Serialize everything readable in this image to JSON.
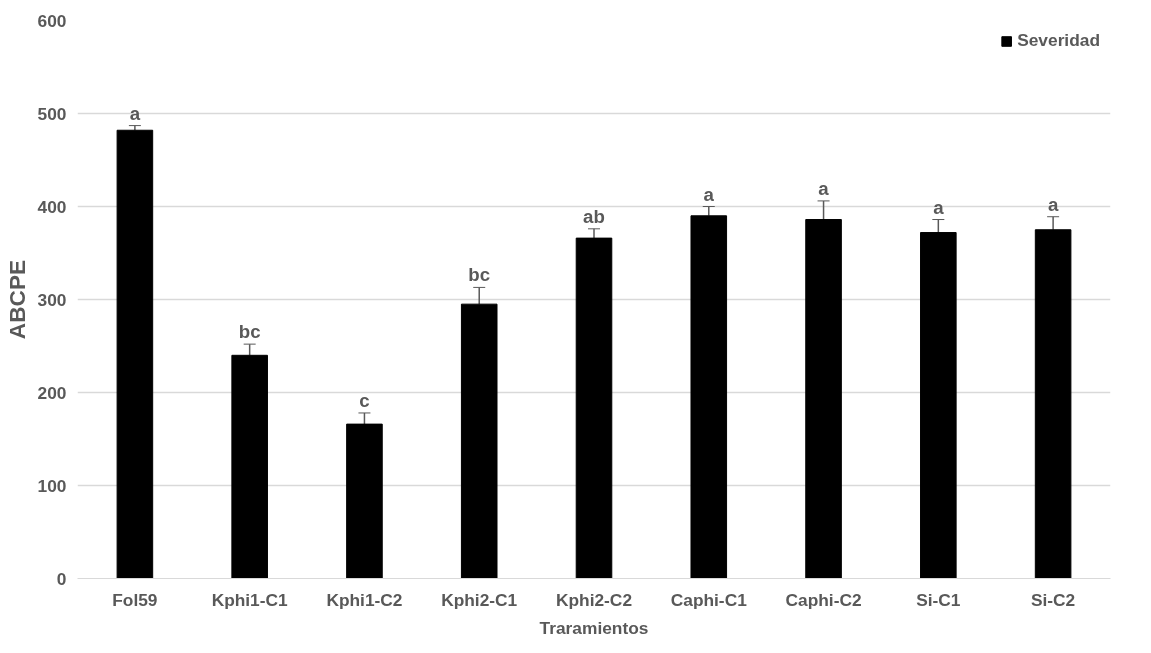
{
  "chart_data": {
    "type": "bar",
    "categories": [
      "Fol59",
      "Kphi1-C1",
      "Kphi1-C2",
      "Kphi2-C1",
      "Kphi2-C2",
      "Caphi-C1",
      "Caphi-C2",
      "Si-C1",
      "Si-C2"
    ],
    "series": [
      {
        "name": "Severidad",
        "color": "#000000",
        "values": [
          482,
          240,
          166,
          295,
          366,
          390,
          386,
          372,
          375
        ],
        "errors": [
          5,
          12,
          12,
          18,
          10,
          10,
          20,
          14,
          14
        ]
      }
    ],
    "xlabel": "Traramientos",
    "ylabel": "ABCPE",
    "ylim": [
      0,
      600
    ],
    "yticks": [
      0,
      100,
      200,
      300,
      400,
      500,
      600
    ],
    "grid": "y",
    "legend": "top right",
    "annotations": [
      {
        "text": "a",
        "x": "Fol59",
        "y": 487
      },
      {
        "text": "bc",
        "x": "Kphi1-C1",
        "y": 252
      },
      {
        "text": "c",
        "x": "Kphi1-C2",
        "y": 178
      },
      {
        "text": "bc",
        "x": "Kphi2-C1",
        "y": 313
      },
      {
        "text": "ab",
        "x": "Kphi2-C2",
        "y": 376
      },
      {
        "text": "a",
        "x": "Caphi-C1",
        "y": 400
      },
      {
        "text": "a",
        "x": "Caphi-C2",
        "y": 406
      },
      {
        "text": "a",
        "x": "Si-C1",
        "y": 386
      },
      {
        "text": "a",
        "x": "Si-C2",
        "y": 389
      }
    ]
  }
}
